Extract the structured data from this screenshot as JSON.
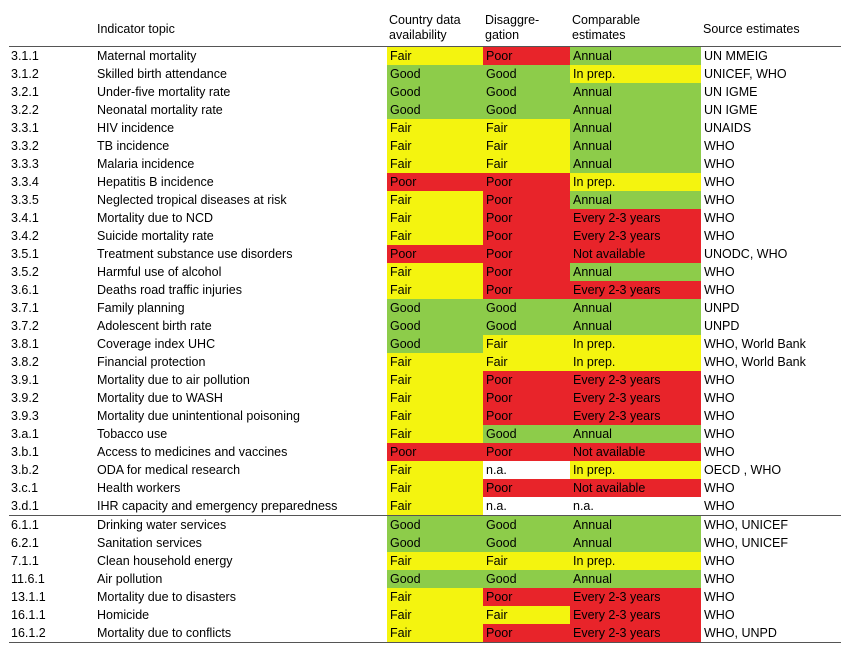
{
  "colors": {
    "Good": "#8dcc4a",
    "Fair": "#f4f40f",
    "Poor": "#e8242a",
    "Annual": "#8dcc4a",
    "In prep.": "#f4f40f",
    "Every 2-3 years": "#e8242a",
    "Not available": "#e8242a",
    "n.a.": "#ffffff"
  },
  "headers": {
    "topic": "Indicator topic",
    "availability": "Country data\navailability",
    "disaggregation": "Disaggre-\ngation",
    "comparable": "Comparable\nestimates",
    "source": "Source estimates"
  },
  "rows": [
    {
      "num": "3.1.1",
      "topic": "Maternal mortality",
      "avail": "Fair",
      "dis": "Poor",
      "cmp": "Annual",
      "src": "UN MMEIG"
    },
    {
      "num": "3.1.2",
      "topic": "Skilled birth attendance",
      "avail": "Good",
      "dis": "Good",
      "cmp": "In prep.",
      "src": "UNICEF, WHO"
    },
    {
      "num": "3.2.1",
      "topic": "Under-five mortality rate",
      "avail": "Good",
      "dis": "Good",
      "cmp": "Annual",
      "src": "UN IGME"
    },
    {
      "num": "3.2.2",
      "topic": "Neonatal mortality rate",
      "avail": "Good",
      "dis": "Good",
      "cmp": "Annual",
      "src": "UN IGME"
    },
    {
      "num": "3.3.1",
      "topic": "HIV incidence",
      "avail": "Fair",
      "dis": "Fair",
      "cmp": "Annual",
      "src": "UNAIDS"
    },
    {
      "num": "3.3.2",
      "topic": "TB incidence",
      "avail": "Fair",
      "dis": "Fair",
      "cmp": "Annual",
      "src": "WHO"
    },
    {
      "num": "3.3.3",
      "topic": "Malaria incidence",
      "avail": "Fair",
      "dis": "Fair",
      "cmp": "Annual",
      "src": "WHO"
    },
    {
      "num": "3.3.4",
      "topic": "Hepatitis B incidence",
      "avail": "Poor",
      "dis": "Poor",
      "cmp": "In prep.",
      "src": "WHO"
    },
    {
      "num": "3.3.5",
      "topic": "Neglected tropical diseases at risk",
      "avail": "Fair",
      "dis": "Poor",
      "cmp": "Annual",
      "src": "WHO"
    },
    {
      "num": "3.4.1",
      "topic": "Mortality due to NCD",
      "avail": "Fair",
      "dis": "Poor",
      "cmp": "Every 2-3 years",
      "src": "WHO"
    },
    {
      "num": "3.4.2",
      "topic": "Suicide mortality rate",
      "avail": "Fair",
      "dis": "Poor",
      "cmp": "Every 2-3 years",
      "src": "WHO"
    },
    {
      "num": "3.5.1",
      "topic": "Treatment substance use disorders",
      "avail": "Poor",
      "dis": "Poor",
      "cmp": "Not available",
      "src": "UNODC, WHO"
    },
    {
      "num": "3.5.2",
      "topic": "Harmful use of alcohol",
      "avail": "Fair",
      "dis": "Poor",
      "cmp": "Annual",
      "src": "WHO"
    },
    {
      "num": "3.6.1",
      "topic": "Deaths road traffic injuries",
      "avail": "Fair",
      "dis": "Poor",
      "cmp": "Every 2-3 years",
      "src": "WHO"
    },
    {
      "num": "3.7.1",
      "topic": "Family planning",
      "avail": "Good",
      "dis": "Good",
      "cmp": "Annual",
      "src": "UNPD"
    },
    {
      "num": "3.7.2",
      "topic": "Adolescent birth rate",
      "avail": "Good",
      "dis": "Good",
      "cmp": "Annual",
      "src": "UNPD"
    },
    {
      "num": "3.8.1",
      "topic": "Coverage index UHC",
      "avail": "Good",
      "dis": "Fair",
      "cmp": "In prep.",
      "src": "WHO, World Bank"
    },
    {
      "num": "3.8.2",
      "topic": "Financial protection",
      "avail": "Fair",
      "dis": "Fair",
      "cmp": "In prep.",
      "src": "WHO, World Bank"
    },
    {
      "num": "3.9.1",
      "topic": "Mortality due to air pollution",
      "avail": "Fair",
      "dis": "Poor",
      "cmp": "Every 2-3 years",
      "src": "WHO"
    },
    {
      "num": "3.9.2",
      "topic": "Mortality due to WASH",
      "avail": "Fair",
      "dis": "Poor",
      "cmp": "Every 2-3 years",
      "src": "WHO"
    },
    {
      "num": "3.9.3",
      "topic": "Mortality due unintentional poisoning",
      "avail": "Fair",
      "dis": "Poor",
      "cmp": "Every 2-3 years",
      "src": "WHO"
    },
    {
      "num": "3.a.1",
      "topic": "Tobacco use",
      "avail": "Fair",
      "dis": "Good",
      "cmp": "Annual",
      "src": "WHO"
    },
    {
      "num": "3.b.1",
      "topic": "Access to medicines and vaccines",
      "avail": "Poor",
      "dis": "Poor",
      "cmp": "Not available",
      "src": "WHO"
    },
    {
      "num": "3.b.2",
      "topic": "ODA for medical research",
      "avail": "Fair",
      "dis": "n.a.",
      "cmp": "In prep.",
      "src": "OECD , WHO"
    },
    {
      "num": "3.c.1",
      "topic": "Health workers",
      "avail": "Fair",
      "dis": "Poor",
      "cmp": "Not available",
      "src": "WHO"
    },
    {
      "num": "3.d.1",
      "topic": "IHR capacity and emergency preparedness",
      "avail": "Fair",
      "dis": "n.a.",
      "cmp": "n.a.",
      "src": "WHO"
    },
    {
      "num": "6.1.1",
      "topic": "Drinking water services",
      "avail": "Good",
      "dis": "Good",
      "cmp": "Annual",
      "src": "WHO, UNICEF",
      "sep": true
    },
    {
      "num": "6.2.1",
      "topic": "Sanitation services",
      "avail": "Good",
      "dis": "Good",
      "cmp": "Annual",
      "src": "WHO, UNICEF"
    },
    {
      "num": "7.1.1",
      "topic": "Clean household energy",
      "avail": "Fair",
      "dis": "Fair",
      "cmp": "In prep.",
      "src": "WHO"
    },
    {
      "num": "11.6.1",
      "topic": "Air pollution",
      "avail": "Good",
      "dis": "Good",
      "cmp": "Annual",
      "src": "WHO"
    },
    {
      "num": "13.1.1",
      "topic": "Mortality due to disasters",
      "avail": "Fair",
      "dis": "Poor",
      "cmp": "Every 2-3 years",
      "src": "WHO"
    },
    {
      "num": "16.1.1",
      "topic": "Homicide",
      "avail": "Fair",
      "dis": "Fair",
      "cmp": "Every 2-3 years",
      "src": "WHO"
    },
    {
      "num": "16.1.2",
      "topic": "Mortality due to conflicts",
      "avail": "Fair",
      "dis": "Poor",
      "cmp": "Every 2-3 years",
      "src": "WHO, UNPD"
    }
  ]
}
